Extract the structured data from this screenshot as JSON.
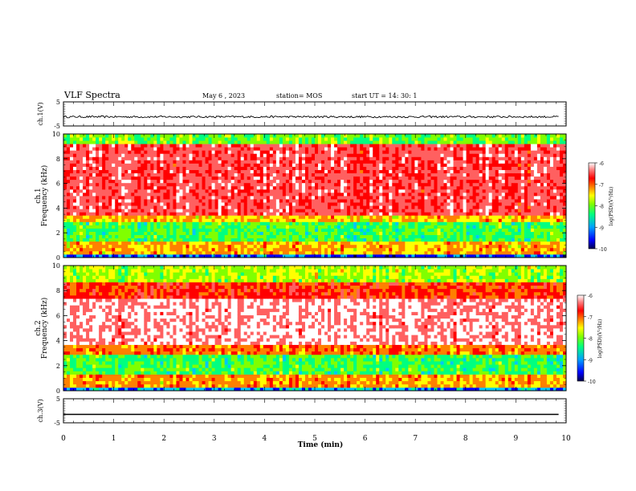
{
  "header": {
    "title": "VLF Spectra",
    "date": "May 6  , 2023",
    "station": "station= MOS",
    "start_time": "start  UT =   14: 30: 1"
  },
  "chart_data": [
    {
      "type": "line",
      "panel": "ch1-waveform",
      "ylabel": "ch.1(V)",
      "ylim": [
        -5,
        5
      ],
      "yticks": [
        "5",
        "-5"
      ],
      "xlim": [
        0,
        10
      ],
      "series": [
        {
          "values_note_level": -1.2
        }
      ],
      "level": -1.2
    },
    {
      "type": "heatmap",
      "panel": "ch1-spectrogram",
      "ylabel": "ch.1",
      "ylabel2": "Frequency (kHz)",
      "ylim": [
        0,
        10
      ],
      "yticks": [
        "0",
        "2",
        "4",
        "6",
        "8",
        "10"
      ],
      "xlim": [
        0,
        10
      ],
      "colorbar": {
        "label": "log(PSD)(V²/Hz)",
        "ticks": [
          "-6",
          "-7",
          "-8",
          "-9",
          "-10"
        ],
        "range": [
          -10,
          -6
        ]
      }
    },
    {
      "type": "heatmap",
      "panel": "ch2-spectrogram",
      "ylabel": "ch.2",
      "ylabel2": "Frequency (kHz)",
      "ylim": [
        0,
        10
      ],
      "yticks": [
        "0",
        "2",
        "4",
        "6",
        "8",
        "10"
      ],
      "xlim": [
        0,
        10
      ],
      "colorbar": {
        "label": "log(PSD)(V²/Hz)",
        "ticks": [
          "-6",
          "-7",
          "-8",
          "-9",
          "-10"
        ],
        "range": [
          -10,
          -6
        ]
      }
    },
    {
      "type": "line",
      "panel": "ch3-waveform",
      "ylabel": "ch.3(V)",
      "ylim": [
        -5,
        5
      ],
      "yticks": [
        "5",
        "-5"
      ],
      "xlim": [
        0,
        10
      ],
      "level": -1.5
    }
  ],
  "xaxis": {
    "label": "Time  (min)",
    "ticks": [
      "0",
      "1",
      "2",
      "3",
      "4",
      "5",
      "6",
      "7",
      "8",
      "9",
      "10"
    ]
  },
  "colors": {
    "ink": "#000000",
    "colormap": [
      "#00004c",
      "#0000ff",
      "#00c8ff",
      "#00ff80",
      "#80ff00",
      "#ffff00",
      "#ff8000",
      "#ff0000",
      "#ff6060",
      "#ffffff"
    ]
  }
}
